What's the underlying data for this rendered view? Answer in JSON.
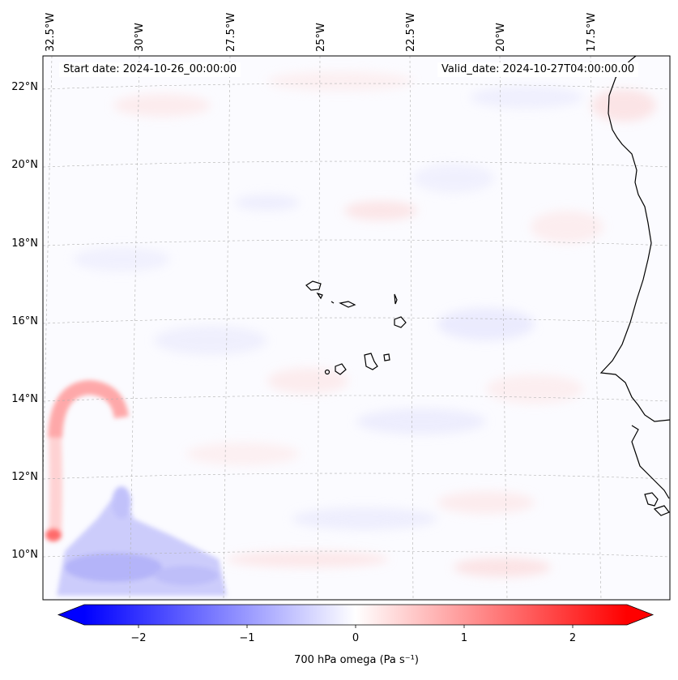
{
  "header": {
    "start_date": "Start date: 2024-10-26_00:00:00",
    "valid_date": "Valid_date: 2024-10-27T04:00:00.00"
  },
  "map": {
    "lon_labels": [
      "32.5°W",
      "30°W",
      "27.5°W",
      "25°W",
      "22.5°W",
      "20°W",
      "17.5°W"
    ],
    "lat_labels": [
      "22°N",
      "20°N",
      "18°N",
      "16°N",
      "14°N",
      "12°N",
      "10°N"
    ],
    "coastline_color": "#000000",
    "gridline_color": "#b0b0b0"
  },
  "colorbar": {
    "ticks": [
      "−2",
      "−1",
      "0",
      "1",
      "2"
    ],
    "label": "700 hPa omega (Pa s⁻¹)",
    "min_color": "#0000ff",
    "mid_color": "#ffffff",
    "max_color": "#ff0000"
  }
}
